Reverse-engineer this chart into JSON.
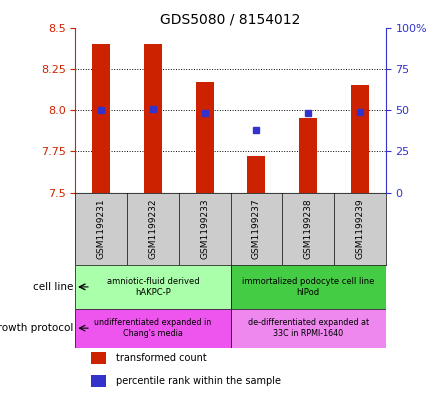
{
  "title": "GDS5080 / 8154012",
  "samples": [
    "GSM1199231",
    "GSM1199232",
    "GSM1199233",
    "GSM1199237",
    "GSM1199238",
    "GSM1199239"
  ],
  "bar_bottom": 7.5,
  "bar_tops": [
    8.4,
    8.4,
    8.17,
    7.72,
    7.95,
    8.15
  ],
  "percentile_values": [
    50.0,
    50.5,
    48.5,
    38.0,
    48.0,
    49.0
  ],
  "ylim_left": [
    7.5,
    8.5
  ],
  "ylim_right": [
    0,
    100
  ],
  "yticks_left": [
    7.5,
    7.75,
    8.0,
    8.25,
    8.5
  ],
  "yticks_right": [
    0,
    25,
    50,
    75,
    100
  ],
  "ytick_labels_right": [
    "0",
    "25",
    "50",
    "75",
    "100%"
  ],
  "bar_color": "#cc2200",
  "dot_color": "#3333cc",
  "cell_line_groups": [
    {
      "label": "amniotic-fluid derived\nhAKPC-P",
      "color": "#aaffaa",
      "start": 0,
      "end": 3
    },
    {
      "label": "immortalized podocyte cell line\nhlPod",
      "color": "#44cc44",
      "start": 3,
      "end": 6
    }
  ],
  "growth_protocol_groups": [
    {
      "label": "undifferentiated expanded in\nChang's media",
      "color": "#ee55ee",
      "start": 0,
      "end": 3
    },
    {
      "label": "de-differentiated expanded at\n33C in RPMI-1640",
      "color": "#ee88ee",
      "start": 3,
      "end": 6
    }
  ],
  "legend_items": [
    {
      "color": "#cc2200",
      "label": "transformed count"
    },
    {
      "color": "#3333cc",
      "label": "percentile rank within the sample"
    }
  ],
  "cell_line_label": "cell line",
  "growth_protocol_label": "growth protocol",
  "left_axis_color": "#cc2200",
  "right_axis_color": "#3333cc",
  "bar_width": 0.35,
  "sample_bg_color": "#cccccc"
}
